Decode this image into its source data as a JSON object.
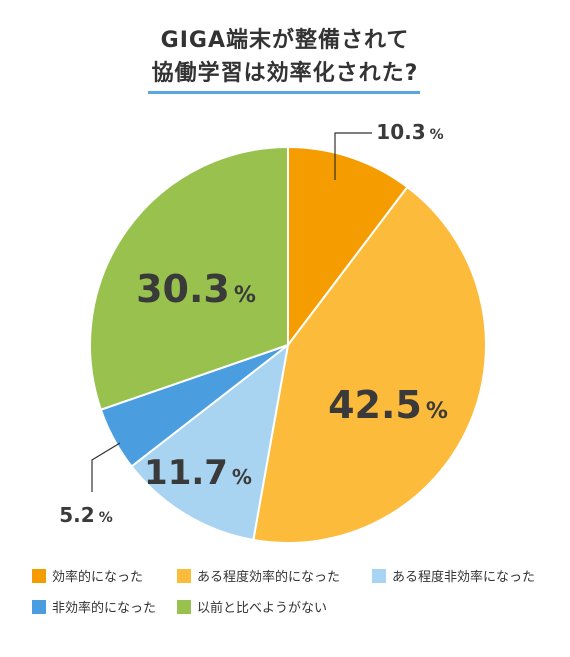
{
  "title_line1": "GIGA端末が整備されて",
  "title_line2": "協働学習は効率化された?",
  "chart_data": {
    "type": "pie",
    "unit": "%",
    "slices": [
      {
        "label": "効率的になった",
        "value": 10.3,
        "color": "#f59c00"
      },
      {
        "label": "ある程度効率的になった",
        "value": 42.5,
        "color": "#fcbb3a"
      },
      {
        "label": "ある程度非効率になった",
        "value": 11.7,
        "color": "#a8d4f2"
      },
      {
        "label": "非効率的になった",
        "value": 5.2,
        "color": "#4a9ee0"
      },
      {
        "label": "以前と比べようがない",
        "value": 30.3,
        "color": "#98c14e"
      }
    ]
  }
}
